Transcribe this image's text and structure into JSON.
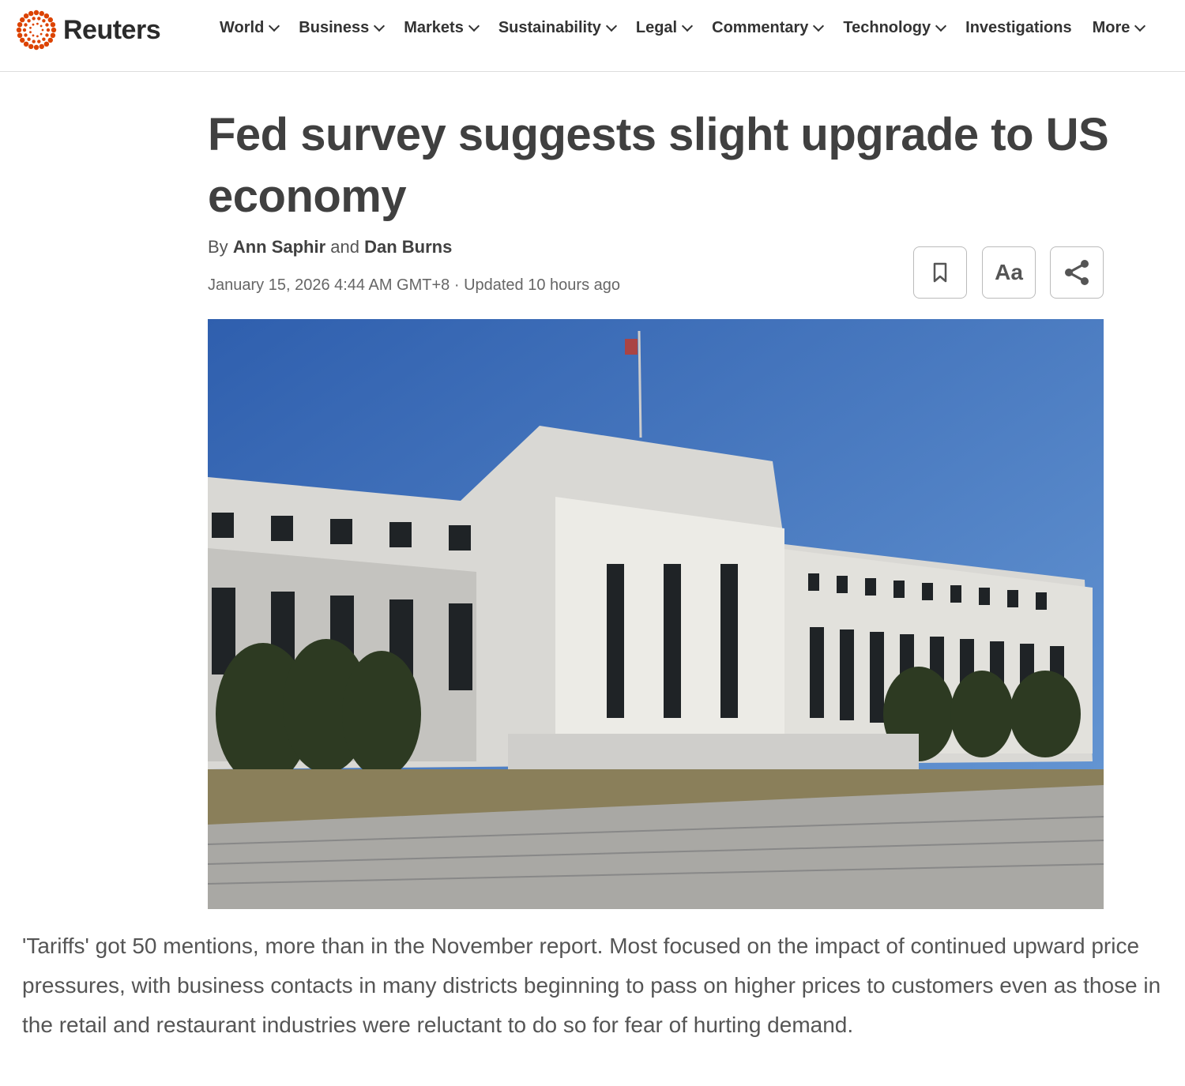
{
  "brand": {
    "name": "Reuters",
    "accent": "#dc4300"
  },
  "nav": {
    "items": [
      {
        "label": "World",
        "dropdown": true
      },
      {
        "label": "Business",
        "dropdown": true
      },
      {
        "label": "Markets",
        "dropdown": true
      },
      {
        "label": "Sustainability",
        "dropdown": true
      },
      {
        "label": "Legal",
        "dropdown": true
      },
      {
        "label": "Commentary",
        "dropdown": true
      },
      {
        "label": "Technology",
        "dropdown": true
      },
      {
        "label": "Investigations",
        "dropdown": false
      },
      {
        "label": "More",
        "dropdown": true
      }
    ]
  },
  "article": {
    "title": "Fed survey suggests slight upgrade to US economy",
    "by": "By",
    "author1": "Ann Saphir",
    "and": "and",
    "author2": "Dan Burns",
    "date": "January 15, 2026 4:44 AM GMT+8 · Updated 10 hours ago",
    "tools": {
      "bookmark_icon": "bookmark-icon",
      "text_size_label": "Aa",
      "share_icon": "share-icon"
    },
    "caption": "'Tariffs' got 50 mentions, more than in the November report. Most focused on the impact of continued upward price pressures, with business contacts in many districts beginning to pass on higher prices to customers even as those in the retail and restaurant industries were reluctant to do so for fear of hurting demand."
  }
}
